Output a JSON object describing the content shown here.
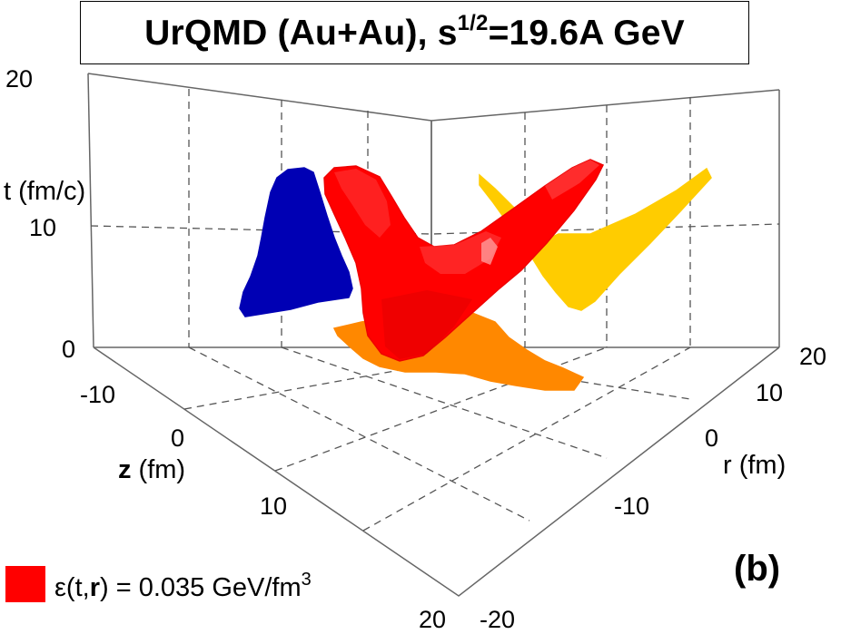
{
  "title": {
    "main": "UrQMD (Au+Au), s",
    "sup": "1/2",
    "rest": "=19.6A GeV"
  },
  "panel_label": "(b)",
  "legend": {
    "color": "#ff0000",
    "label_pre": "ε(t,",
    "label_bold": "r",
    "label_post": ") = 0.035 GeV/fm",
    "label_sup": "3"
  },
  "colors": {
    "surface": "#ff0000",
    "projection_tz": "#0000b4",
    "projection_tr": "#ffcc00",
    "projection_zr": "#ff8800"
  },
  "chart_data": {
    "type": "3d-isosurface",
    "title": "UrQMD (Au+Au), s^1/2=19.6A GeV",
    "axes": {
      "t": {
        "label": "t (fm/c)",
        "range": [
          0,
          20
        ],
        "ticks": [
          "0",
          "10",
          "20"
        ]
      },
      "z": {
        "label_bold": "z",
        "label_rest": " (fm)",
        "range": [
          -20,
          20
        ],
        "ticks": [
          "-10",
          "0",
          "10",
          "20"
        ]
      },
      "r": {
        "label": "r (fm)",
        "range": [
          -20,
          20
        ],
        "ticks": [
          "20",
          "10",
          "0",
          "-10",
          "-20"
        ]
      }
    },
    "grid": true,
    "isosurface_level": "0.035 GeV/fm^3"
  }
}
